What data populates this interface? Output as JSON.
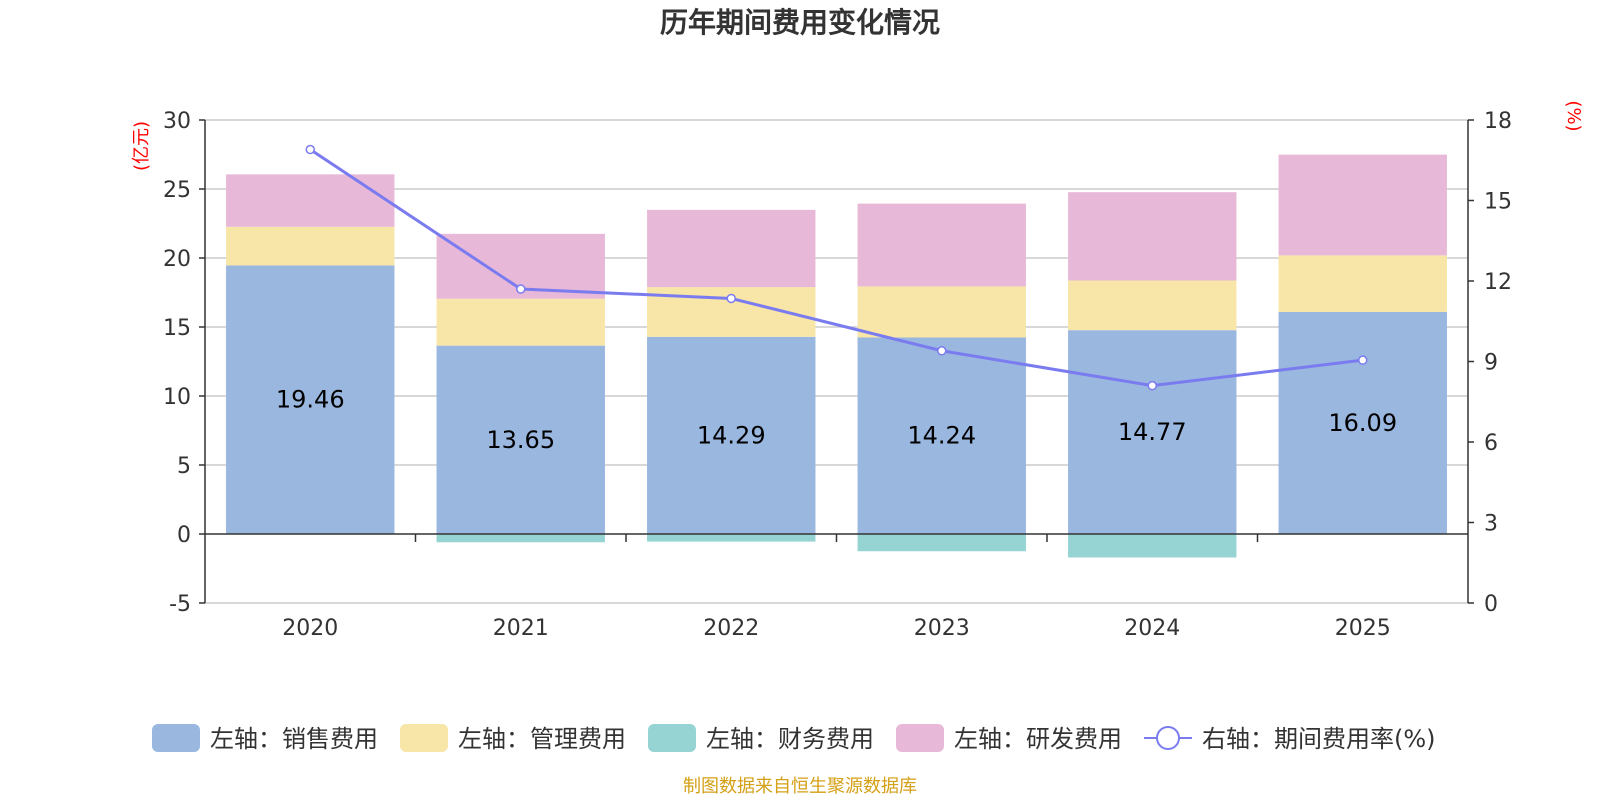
{
  "chart_data": {
    "type": "bar",
    "stacked": true,
    "title": "历年期间费用变化情况",
    "categories": [
      "2020",
      "2021",
      "2022",
      "2023",
      "2024",
      "2025"
    ],
    "left_axis": {
      "unit_label": "(亿元)",
      "ylim": [
        -5,
        30
      ],
      "ticks": [
        30,
        25,
        20,
        15,
        10,
        5,
        0,
        -5
      ]
    },
    "right_axis": {
      "unit_label": "(%)",
      "ylim": [
        0,
        18
      ],
      "ticks": [
        18,
        15,
        12,
        9,
        6,
        3,
        0
      ]
    },
    "series": [
      {
        "name": "左轴：销售费用",
        "kind": "bar",
        "axis": "left",
        "color": "#9ab7e0",
        "values": [
          19.46,
          13.65,
          14.29,
          14.24,
          14.77,
          16.09
        ],
        "labels": [
          "19.46",
          "13.65",
          "14.29",
          "14.24",
          "14.77",
          "16.09"
        ]
      },
      {
        "name": "左轴：管理费用",
        "kind": "bar",
        "axis": "left",
        "color": "#f8e6a8",
        "values": [
          2.8,
          3.4,
          3.6,
          3.7,
          3.6,
          4.1
        ]
      },
      {
        "name": "左轴：财务费用",
        "kind": "bar",
        "axis": "left",
        "color": "#96d4d4",
        "values": [
          0.0,
          -0.6,
          -0.55,
          -1.25,
          -1.7,
          0.0
        ]
      },
      {
        "name": "左轴：研发费用",
        "kind": "bar",
        "axis": "left",
        "color": "#e8b8d8",
        "values": [
          3.8,
          4.7,
          5.6,
          6.0,
          6.4,
          7.3
        ]
      },
      {
        "name": "右轴：期间费用率(%)",
        "kind": "line",
        "axis": "right",
        "color": "#7b7bf0",
        "values": [
          16.9,
          11.7,
          11.35,
          9.4,
          8.1,
          9.05
        ]
      }
    ]
  },
  "footer": {
    "source": "制图数据来自恒生聚源数据库"
  }
}
